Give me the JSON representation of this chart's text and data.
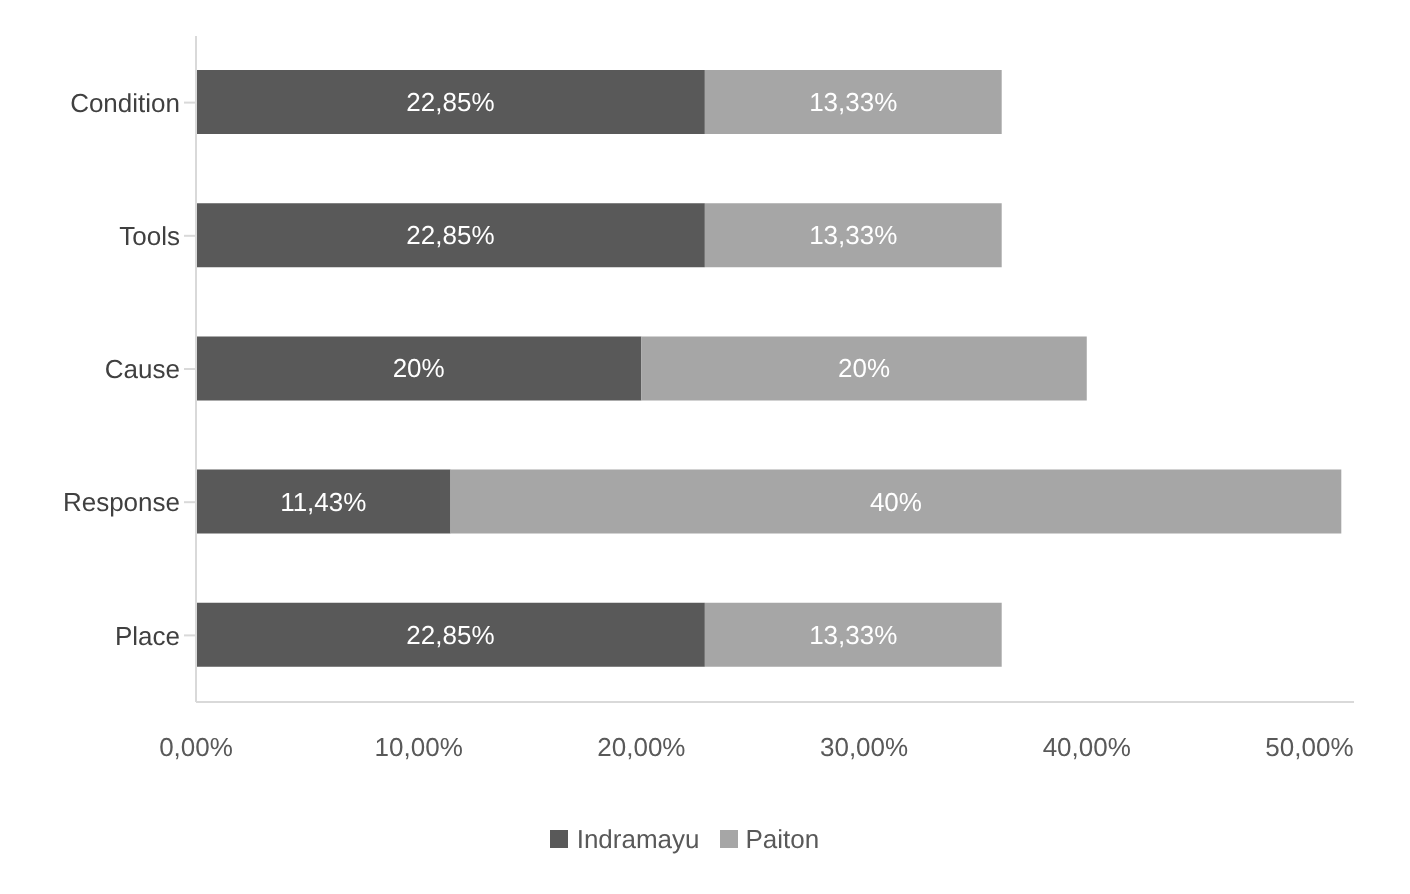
{
  "chart_data": {
    "type": "bar",
    "orientation": "horizontal",
    "stacked": true,
    "categories": [
      "Condition",
      "Tools",
      "Cause",
      "Response",
      "Place"
    ],
    "series": [
      {
        "name": "Indramayu",
        "color": "#595959",
        "values": [
          22.85,
          22.85,
          20,
          11.43,
          22.85
        ],
        "value_labels": [
          "22,85%",
          "22,85%",
          "20%",
          "11,43%",
          "22,85%"
        ]
      },
      {
        "name": "Paiton",
        "color": "#a6a6a6",
        "values": [
          13.33,
          13.33,
          20,
          40,
          13.33
        ],
        "value_labels": [
          "13,33%",
          "13,33%",
          "20%",
          "40%",
          "13,33%"
        ]
      }
    ],
    "xlim": [
      0,
      52
    ],
    "xticks": [
      {
        "value": 0,
        "label": "0,00%"
      },
      {
        "value": 10,
        "label": "10,00%"
      },
      {
        "value": 20,
        "label": "20,00%"
      },
      {
        "value": 30,
        "label": "30,00%"
      },
      {
        "value": 40,
        "label": "40,00%"
      },
      {
        "value": 50,
        "label": "50,00%"
      }
    ],
    "grid": false,
    "legend": "bottom"
  }
}
